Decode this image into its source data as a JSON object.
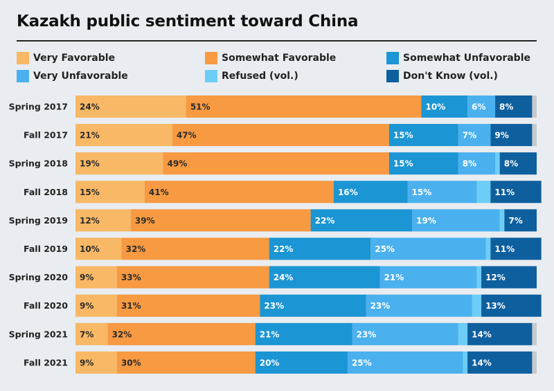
{
  "title": "Kazakh public sentiment toward China",
  "colors": {
    "very_favorable": "#f8b865",
    "somewhat_favorable": "#f79a42",
    "somewhat_unfavorable": "#1b95d3",
    "very_unfavorable": "#4ab1ee",
    "refused": "#6ccdf6",
    "dont_know": "#0e5f9e",
    "remainder": "#c7cacd"
  },
  "chart_data": {
    "type": "bar",
    "orientation": "horizontal",
    "stacked": true,
    "title": "Kazakh public sentiment toward China",
    "categories": [
      "Spring 2017",
      "Fall 2017",
      "Spring 2018",
      "Fall 2018",
      "Spring 2019",
      "Fall 2019",
      "Spring 2020",
      "Fall 2020",
      "Spring 2021",
      "Fall 2021"
    ],
    "series": [
      {
        "name": "Very Favorable",
        "key": "very_favorable",
        "values": [
          24,
          21,
          19,
          15,
          12,
          10,
          9,
          9,
          7,
          9
        ]
      },
      {
        "name": "Somewhat Favorable",
        "key": "somewhat_favorable",
        "values": [
          51,
          47,
          49,
          41,
          39,
          32,
          33,
          31,
          32,
          30
        ]
      },
      {
        "name": "Somewhat Unfavorable",
        "key": "somewhat_unfavorable",
        "values": [
          10,
          15,
          15,
          16,
          22,
          22,
          24,
          23,
          21,
          20
        ]
      },
      {
        "name": "Very Unfavorable",
        "key": "very_unfavorable",
        "values": [
          6,
          7,
          8,
          15,
          19,
          25,
          21,
          23,
          23,
          25
        ]
      },
      {
        "name": "Refused (vol.)",
        "key": "refused",
        "values": [
          0,
          0,
          1,
          3,
          1,
          1,
          1,
          2,
          2,
          1
        ]
      },
      {
        "name": "Don't Know (vol.)",
        "key": "dont_know",
        "values": [
          8,
          9,
          8,
          11,
          7,
          11,
          12,
          13,
          14,
          14
        ]
      }
    ],
    "labels": [
      [
        "24%",
        "51%",
        "10%",
        "6%",
        "",
        "8%"
      ],
      [
        "21%",
        "47%",
        "15%",
        "7%",
        "",
        "9%"
      ],
      [
        "19%",
        "49%",
        "15%",
        "8%",
        "",
        "8%"
      ],
      [
        "15%",
        "41%",
        "16%",
        "15%",
        "",
        "11%"
      ],
      [
        "12%",
        "39%",
        "22%",
        "19%",
        "",
        "7%"
      ],
      [
        "10%",
        "32%",
        "22%",
        "25%",
        "",
        "11%"
      ],
      [
        "9%",
        "33%",
        "24%",
        "21%",
        "",
        "12%"
      ],
      [
        "9%",
        "31%",
        "23%",
        "23%",
        "",
        "13%"
      ],
      [
        "7%",
        "32%",
        "21%",
        "23%",
        "",
        "14%"
      ],
      [
        "9%",
        "30%",
        "20%",
        "25%",
        "",
        "14%"
      ]
    ],
    "xlim": [
      0,
      100
    ],
    "legend_position": "top",
    "grid": false
  }
}
